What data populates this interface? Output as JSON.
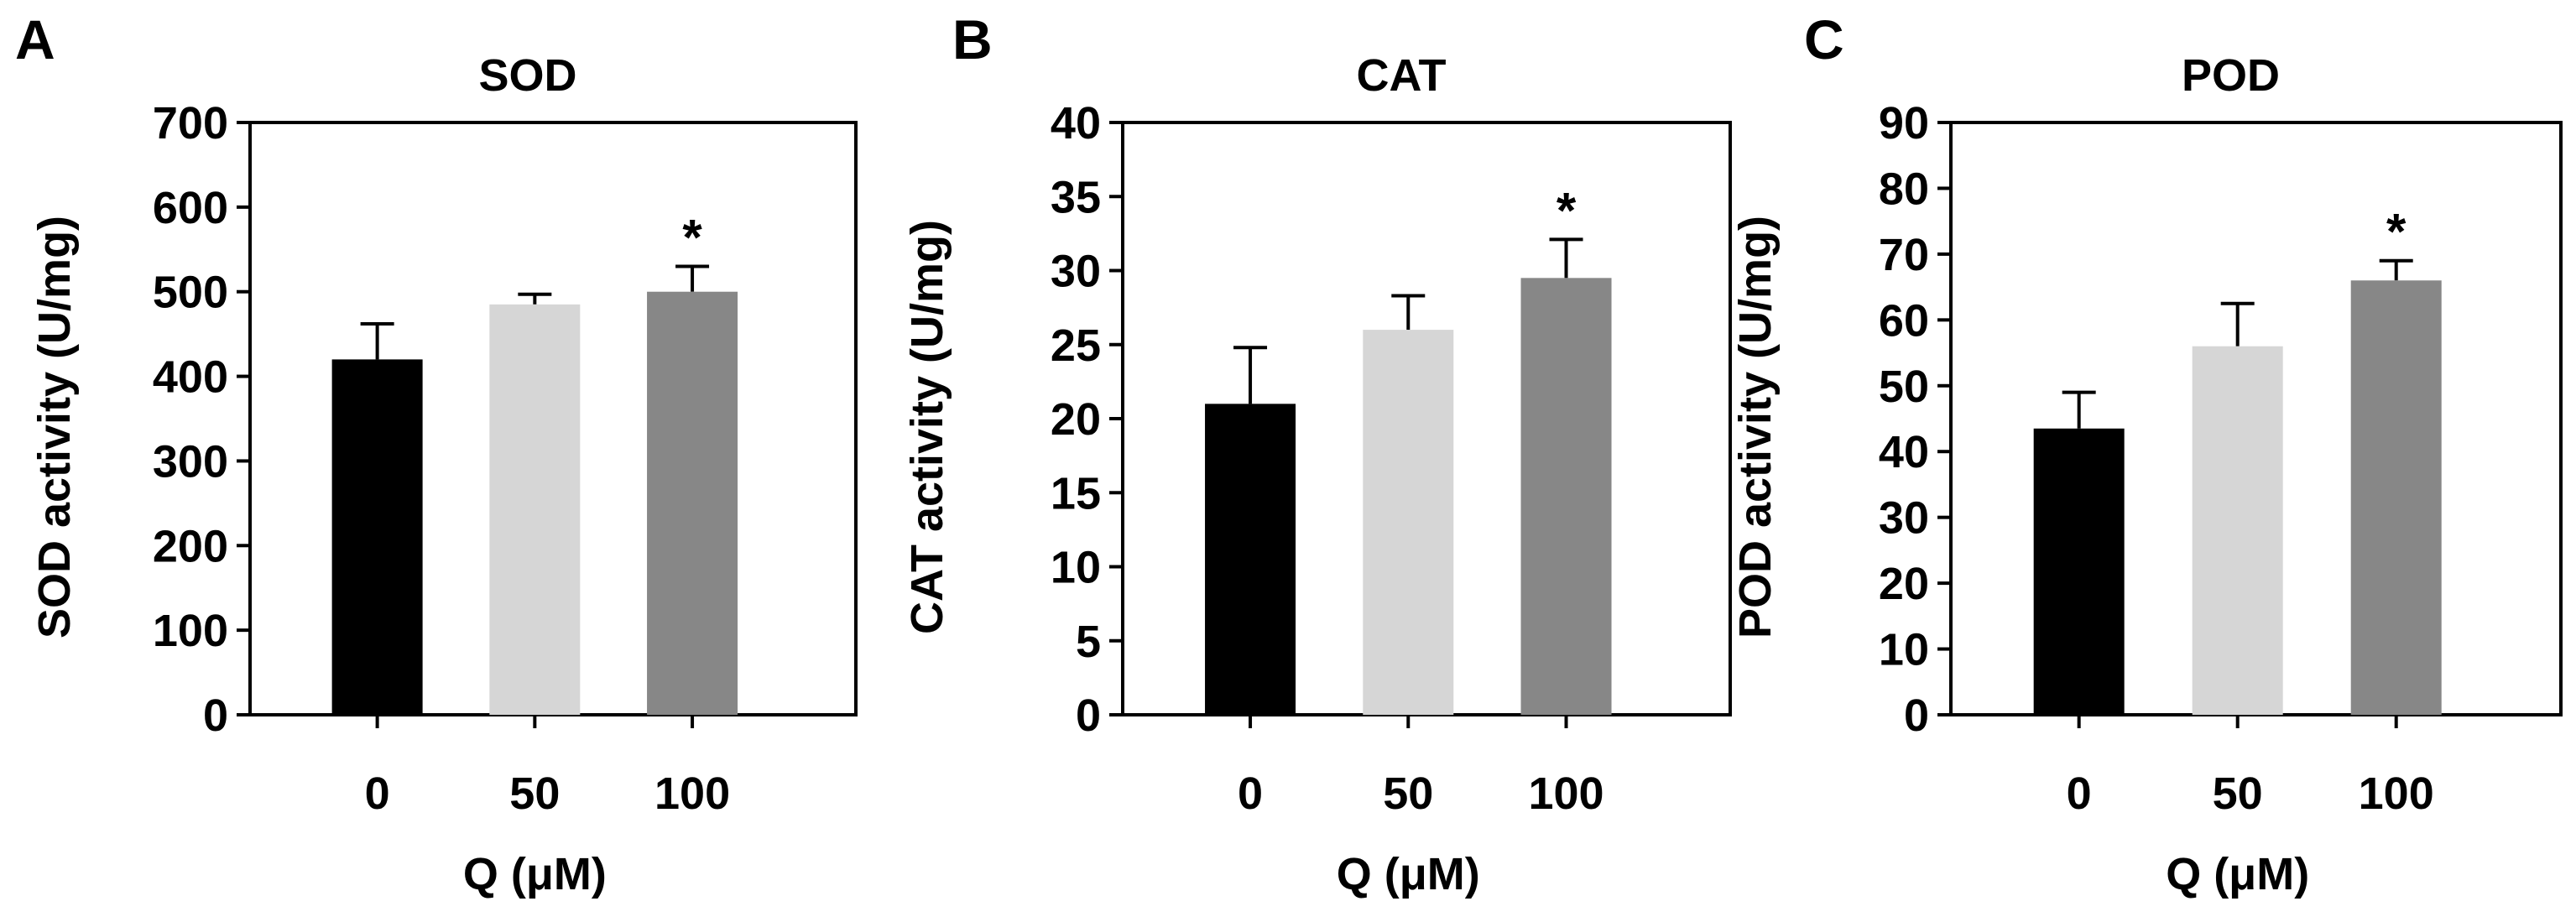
{
  "figure": {
    "panels": [
      "A",
      "B",
      "C"
    ]
  },
  "chart_data": [
    {
      "panel": "A",
      "type": "bar",
      "title": "SOD",
      "xlabel": "Q (μM)",
      "ylabel": "SOD activity (U/mg)",
      "categories": [
        "0",
        "50",
        "100"
      ],
      "values": [
        420,
        485,
        500
      ],
      "errors": [
        42,
        12,
        30
      ],
      "significance": [
        "",
        "",
        "*"
      ],
      "bar_colors": [
        "#000000",
        "#d6d6d6",
        "#878787"
      ],
      "ylim": [
        0,
        700
      ],
      "yticks": [
        "0",
        "100",
        "200",
        "300",
        "400",
        "500",
        "600",
        "700"
      ],
      "grid": false
    },
    {
      "panel": "B",
      "type": "bar",
      "title": "CAT",
      "xlabel": "Q (μM)",
      "ylabel": "CAT activity (U/mg)",
      "categories": [
        "0",
        "50",
        "100"
      ],
      "values": [
        21,
        26,
        29.5
      ],
      "errors": [
        3.8,
        2.3,
        2.6
      ],
      "significance": [
        "",
        "",
        "*"
      ],
      "bar_colors": [
        "#000000",
        "#d6d6d6",
        "#878787"
      ],
      "ylim": [
        0,
        40
      ],
      "yticks": [
        "0",
        "5",
        "10",
        "15",
        "20",
        "25",
        "30",
        "35",
        "40"
      ],
      "grid": false
    },
    {
      "panel": "C",
      "type": "bar",
      "title": "POD",
      "xlabel": "Q (μM)",
      "ylabel": "POD activity (U/mg)",
      "categories": [
        "0",
        "50",
        "100"
      ],
      "values": [
        43.5,
        56,
        66
      ],
      "errors": [
        5.5,
        6.5,
        3
      ],
      "significance": [
        "",
        "",
        "*"
      ],
      "bar_colors": [
        "#000000",
        "#d6d6d6",
        "#878787"
      ],
      "ylim": [
        0,
        90
      ],
      "yticks": [
        "0",
        "10",
        "20",
        "30",
        "40",
        "50",
        "60",
        "70",
        "80",
        "90"
      ],
      "grid": false
    }
  ]
}
